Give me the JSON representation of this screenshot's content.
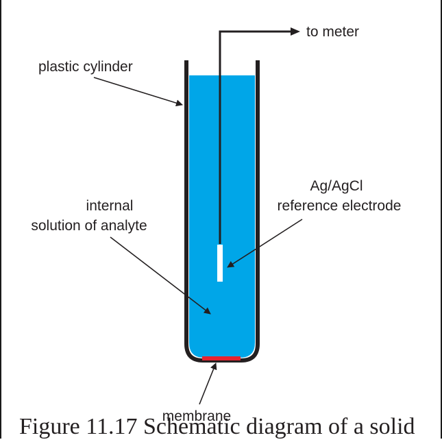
{
  "labels": {
    "to_meter": "to meter",
    "plastic_cylinder": "plastic cylinder",
    "internal_line1": "internal",
    "internal_line2": "solution of analyte",
    "agagcl_line1": "Ag/AgCl",
    "agagcl_line2": "reference electrode",
    "membrane": "membrane"
  },
  "caption": "Figure 11.17 Schematic diagram of a solid",
  "colors": {
    "solution": "#00a6e8",
    "membrane": "#e8222e",
    "outline": "#231f20",
    "electrode_tip": "#ffffff"
  }
}
